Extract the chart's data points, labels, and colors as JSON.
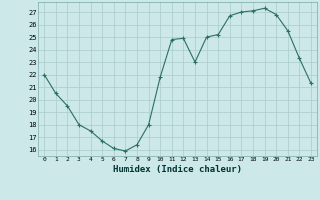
{
  "x": [
    0,
    1,
    2,
    3,
    4,
    5,
    6,
    7,
    8,
    9,
    10,
    11,
    12,
    13,
    14,
    15,
    16,
    17,
    18,
    19,
    20,
    21,
    22,
    23
  ],
  "y": [
    22,
    20.5,
    19.5,
    18,
    17.5,
    16.7,
    16.1,
    15.9,
    16.4,
    18,
    21.8,
    24.8,
    24.9,
    23,
    25,
    25.2,
    26.7,
    27,
    27.1,
    27.3,
    26.8,
    25.5,
    23.3,
    21.3
  ],
  "line_color": "#2d6e63",
  "marker": "+",
  "marker_size": 3,
  "bg_color": "#cce8e8",
  "grid_color": "#aacccc",
  "xlabel": "Humidex (Indice chaleur)",
  "ylabel_ticks": [
    16,
    17,
    18,
    19,
    20,
    21,
    22,
    23,
    24,
    25,
    26,
    27
  ],
  "xlim": [
    -0.5,
    23.5
  ],
  "ylim": [
    15.5,
    27.8
  ]
}
